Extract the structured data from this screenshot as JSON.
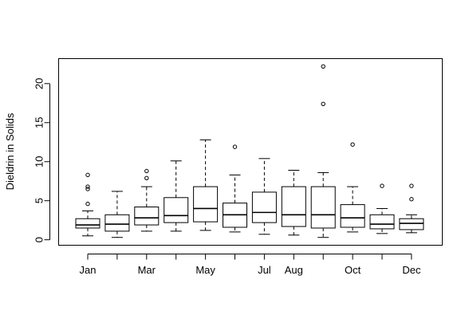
{
  "chart_data": {
    "type": "boxplot",
    "title": "",
    "xlabel": "",
    "ylabel": "Dieldrin in Solids",
    "ylim": [
      -0.7,
      23.2
    ],
    "yticks": [
      0,
      5,
      10,
      15,
      20
    ],
    "ytick_labels": [
      "0",
      "5",
      "10",
      "15",
      "20"
    ],
    "grid": false,
    "categories": [
      "Jan",
      "",
      "Mar",
      "",
      "May",
      "",
      "Jul",
      "Aug",
      "",
      "Oct",
      "",
      "Dec"
    ],
    "boxes": [
      {
        "whisker_low": 0.5,
        "q1": 1.5,
        "median": 1.9,
        "q3": 2.7,
        "whisker_high": 3.7,
        "outliers": [
          4.6,
          6.5,
          6.8,
          8.3
        ]
      },
      {
        "whisker_low": 0.3,
        "q1": 1.1,
        "median": 2.0,
        "q3": 3.2,
        "whisker_high": 6.2,
        "outliers": []
      },
      {
        "whisker_low": 1.1,
        "q1": 1.9,
        "median": 2.8,
        "q3": 4.2,
        "whisker_high": 6.8,
        "outliers": [
          7.9,
          8.8
        ]
      },
      {
        "whisker_low": 1.1,
        "q1": 2.2,
        "median": 3.1,
        "q3": 5.4,
        "whisker_high": 10.1,
        "outliers": []
      },
      {
        "whisker_low": 1.2,
        "q1": 2.3,
        "median": 4.0,
        "q3": 6.8,
        "whisker_high": 12.8,
        "outliers": []
      },
      {
        "whisker_low": 1.0,
        "q1": 1.6,
        "median": 3.2,
        "q3": 4.7,
        "whisker_high": 8.3,
        "outliers": [
          11.9
        ]
      },
      {
        "whisker_low": 0.7,
        "q1": 2.2,
        "median": 3.5,
        "q3": 6.1,
        "whisker_high": 10.4,
        "outliers": []
      },
      {
        "whisker_low": 0.6,
        "q1": 1.7,
        "median": 3.2,
        "q3": 6.8,
        "whisker_high": 8.9,
        "outliers": []
      },
      {
        "whisker_low": 0.3,
        "q1": 1.5,
        "median": 3.2,
        "q3": 6.8,
        "whisker_high": 8.6,
        "outliers": [
          17.4,
          22.2
        ]
      },
      {
        "whisker_low": 1.0,
        "q1": 1.6,
        "median": 2.8,
        "q3": 4.5,
        "whisker_high": 6.8,
        "outliers": [
          12.2
        ]
      },
      {
        "whisker_low": 0.8,
        "q1": 1.4,
        "median": 2.0,
        "q3": 3.2,
        "whisker_high": 4.0,
        "outliers": [
          6.9
        ]
      },
      {
        "whisker_low": 0.9,
        "q1": 1.3,
        "median": 2.1,
        "q3": 2.7,
        "whisker_high": 3.2,
        "outliers": [
          5.2,
          6.9
        ]
      }
    ]
  }
}
